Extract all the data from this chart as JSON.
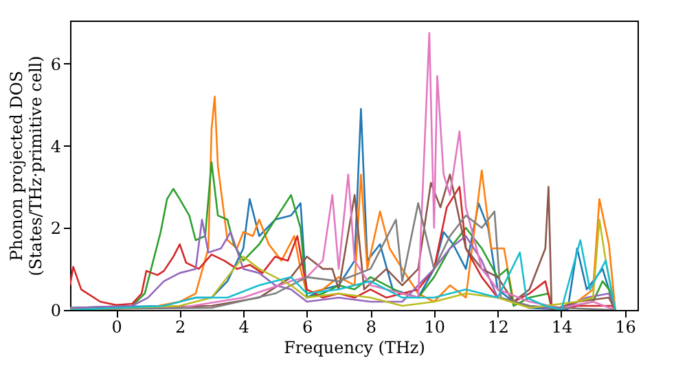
{
  "chart_data": {
    "type": "line",
    "xlabel": "Frequency (THz)",
    "ylabel": "Phonon projected DOS\n(States/THz·primitive cell)",
    "xlim": [
      -1.45,
      16.4
    ],
    "ylim": [
      0,
      7.05
    ],
    "xticks": [
      0,
      2,
      4,
      6,
      8,
      10,
      12,
      14,
      16
    ],
    "yticks": [
      0,
      2,
      4,
      6
    ],
    "grid": false,
    "legend": false,
    "marker": "none",
    "line_style": "solid",
    "series": [
      {
        "color": "#1f77b4",
        "x": [
          -1.45,
          1.5,
          2.5,
          3.0,
          3.5,
          4.0,
          4.2,
          4.5,
          5.0,
          5.5,
          5.8,
          6.0,
          6.5,
          7.0,
          7.5,
          7.7,
          7.9,
          8.3,
          8.7,
          9.5,
          10.0,
          10.3,
          10.6,
          11.0,
          11.4,
          11.7,
          12.0,
          12.5,
          13.0,
          14.2,
          14.5,
          14.8,
          15.3,
          15.7
        ],
        "values": [
          0.05,
          0.1,
          0.3,
          0.3,
          0.7,
          1.5,
          2.7,
          1.8,
          2.2,
          2.3,
          2.6,
          0.3,
          0.5,
          0.6,
          1.2,
          4.9,
          1.2,
          1.6,
          0.5,
          0.3,
          1.0,
          1.9,
          1.6,
          1.0,
          2.6,
          2.0,
          0.5,
          0.2,
          0.05,
          0,
          1.5,
          0.5,
          1.0,
          0
        ]
      },
      {
        "color": "#ff7f0e",
        "x": [
          -1.45,
          1.0,
          2.0,
          2.5,
          2.9,
          3.0,
          3.1,
          3.2,
          3.5,
          3.8,
          4.0,
          4.3,
          4.5,
          4.8,
          5.2,
          5.6,
          5.8,
          6.0,
          6.5,
          7.0,
          7.5,
          7.7,
          7.9,
          8.3,
          8.6,
          9.0,
          9.5,
          10.0,
          10.5,
          11.0,
          11.5,
          11.8,
          12.2,
          12.5,
          13.0,
          14.0,
          14.5,
          15.0,
          15.2,
          15.5,
          15.7
        ],
        "values": [
          0,
          0.05,
          0.2,
          0.4,
          1.5,
          4.4,
          5.2,
          3.5,
          1.7,
          1.5,
          1.9,
          1.8,
          2.2,
          1.6,
          1.2,
          1.8,
          1.0,
          0.4,
          0.5,
          0.8,
          0.6,
          3.3,
          1.0,
          2.4,
          1.5,
          1.0,
          0.4,
          0.2,
          0.6,
          0.3,
          3.4,
          1.5,
          1.5,
          0.2,
          0.1,
          0,
          0.2,
          0.5,
          2.7,
          1.6,
          0
        ]
      },
      {
        "color": "#2ca02c",
        "x": [
          -1.45,
          0.5,
          0.9,
          1.1,
          1.4,
          1.6,
          1.8,
          2.0,
          2.3,
          2.5,
          2.8,
          3.0,
          3.2,
          3.5,
          3.7,
          4.0,
          4.5,
          5.0,
          5.5,
          5.8,
          6.0,
          6.5,
          7.0,
          7.5,
          8.0,
          8.5,
          9.0,
          9.5,
          10.0,
          10.5,
          11.0,
          11.5,
          12.0,
          12.3,
          12.5,
          13.0,
          13.6,
          13.7,
          14.4,
          15.0,
          15.3,
          15.5,
          15.7
        ],
        "values": [
          0.05,
          0.1,
          0.4,
          1.0,
          1.9,
          2.7,
          2.95,
          2.7,
          2.3,
          1.7,
          1.8,
          3.6,
          2.3,
          2.2,
          1.6,
          1.2,
          1.6,
          2.2,
          2.8,
          2.0,
          0.3,
          0.4,
          0.6,
          0.5,
          0.8,
          0.6,
          0.4,
          0.3,
          0.8,
          1.5,
          2.0,
          1.5,
          0.8,
          1.0,
          0.1,
          0.3,
          0.4,
          0,
          0.1,
          0.2,
          0.7,
          0.5,
          0
        ]
      },
      {
        "color": "#d62728",
        "x": [
          -1.45,
          -1.35,
          -1.1,
          -0.5,
          0.0,
          0.5,
          0.8,
          0.95,
          1.3,
          1.5,
          1.8,
          2.0,
          2.2,
          2.6,
          3.0,
          3.4,
          3.8,
          4.2,
          4.6,
          5.0,
          5.4,
          5.7,
          6.0,
          6.5,
          7.0,
          7.5,
          8.0,
          8.5,
          9.0,
          9.5,
          10.0,
          10.4,
          10.8,
          11.0,
          11.5,
          12.0,
          12.5,
          13.0,
          13.5,
          13.7,
          14.3,
          14.5,
          15.0,
          15.6,
          15.7
        ],
        "values": [
          0.6,
          1.05,
          0.5,
          0.2,
          0.12,
          0.15,
          0.4,
          0.95,
          0.85,
          0.95,
          1.3,
          1.6,
          1.15,
          1.0,
          1.35,
          1.2,
          1.0,
          1.1,
          0.9,
          1.3,
          1.2,
          1.8,
          0.5,
          0.3,
          0.4,
          0.3,
          0.5,
          0.3,
          0.4,
          0.5,
          1.0,
          2.5,
          3.0,
          1.5,
          0.8,
          0.3,
          0.2,
          0.4,
          0.7,
          0.05,
          0.05,
          0.1,
          0.1,
          0.1,
          0
        ]
      },
      {
        "color": "#9467bd",
        "x": [
          -1.45,
          0.5,
          1.0,
          1.5,
          2.0,
          2.5,
          2.7,
          2.9,
          3.3,
          3.6,
          4.0,
          4.5,
          5.0,
          5.5,
          6.0,
          7.0,
          8.0,
          9.0,
          10.0,
          10.5,
          11.0,
          11.5,
          12.0,
          13.0,
          14.0,
          14.8,
          15.5,
          15.7
        ],
        "values": [
          0.05,
          0.1,
          0.3,
          0.7,
          0.9,
          1.0,
          2.2,
          1.4,
          1.5,
          1.9,
          1.0,
          0.9,
          0.6,
          0.5,
          0.2,
          0.3,
          0.2,
          0.2,
          1.0,
          1.5,
          1.8,
          1.2,
          0.3,
          0.1,
          0,
          0.3,
          0.4,
          0
        ]
      },
      {
        "color": "#8c564b",
        "x": [
          -1.45,
          3.0,
          4.5,
          5.5,
          6.0,
          6.5,
          6.8,
          7.0,
          7.5,
          7.8,
          8.5,
          9.0,
          9.5,
          9.9,
          10.2,
          10.5,
          10.8,
          11.0,
          11.5,
          12.0,
          12.5,
          13.0,
          13.5,
          13.6,
          13.7,
          14.5,
          15.5,
          15.7
        ],
        "values": [
          0,
          0.1,
          0.3,
          0.8,
          1.3,
          1.0,
          1.0,
          0.5,
          2.8,
          0.5,
          1.0,
          0.6,
          1.0,
          3.1,
          2.5,
          3.3,
          2.2,
          1.5,
          1.0,
          0.8,
          0.2,
          0.5,
          1.5,
          3.0,
          0,
          0.2,
          0.3,
          0
        ]
      },
      {
        "color": "#e377c2",
        "x": [
          -1.45,
          2.0,
          4.0,
          5.5,
          6.0,
          6.5,
          6.8,
          7.0,
          7.3,
          7.5,
          8.0,
          9.0,
          9.5,
          9.85,
          10.0,
          10.1,
          10.3,
          10.5,
          10.8,
          11.0,
          11.5,
          12.0,
          13.0,
          14.0,
          15.0,
          15.7
        ],
        "values": [
          0.02,
          0.05,
          0.3,
          0.7,
          0.8,
          1.2,
          2.8,
          1.0,
          3.3,
          1.2,
          0.6,
          0.4,
          0.3,
          6.75,
          2.0,
          5.7,
          3.3,
          2.8,
          4.35,
          2.5,
          1.0,
          0.5,
          0.2,
          0.05,
          0.2,
          0
        ]
      },
      {
        "color": "#7f7f7f",
        "x": [
          -1.45,
          3.0,
          5.0,
          6.0,
          7.0,
          8.0,
          8.8,
          9.0,
          9.5,
          10.0,
          10.5,
          11.0,
          11.5,
          11.9,
          12.1,
          13.0,
          14.0,
          15.7
        ],
        "values": [
          0.02,
          0.05,
          0.4,
          0.8,
          0.7,
          1.0,
          2.2,
          0.7,
          2.6,
          1.0,
          1.8,
          2.3,
          2.0,
          2.4,
          0.3,
          0.1,
          0.05,
          0
        ]
      },
      {
        "color": "#bcbd22",
        "x": [
          -1.45,
          2.0,
          3.0,
          4.0,
          4.5,
          5.0,
          5.5,
          6.0,
          7.0,
          8.0,
          9.0,
          10.0,
          11.0,
          12.0,
          13.0,
          14.5,
          15.0,
          15.2,
          15.4,
          15.7
        ],
        "values": [
          0,
          0.1,
          0.3,
          1.3,
          1.0,
          0.8,
          0.6,
          0.3,
          0.4,
          0.3,
          0.1,
          0.2,
          0.4,
          0.3,
          0.05,
          0.2,
          0.3,
          2.2,
          1.2,
          0
        ]
      },
      {
        "color": "#17becf",
        "x": [
          -1.45,
          1.5,
          2.5,
          3.5,
          4.5,
          5.5,
          6.0,
          7.0,
          8.0,
          9.0,
          10.0,
          11.0,
          12.0,
          12.7,
          12.9,
          13.5,
          14.0,
          14.6,
          14.9,
          15.4,
          15.7
        ],
        "values": [
          0,
          0.1,
          0.3,
          0.3,
          0.6,
          0.8,
          0.4,
          0.5,
          0.7,
          0.3,
          0.3,
          0.5,
          0.3,
          1.4,
          0.3,
          0.1,
          0,
          1.7,
          0.5,
          1.2,
          0
        ]
      }
    ]
  }
}
